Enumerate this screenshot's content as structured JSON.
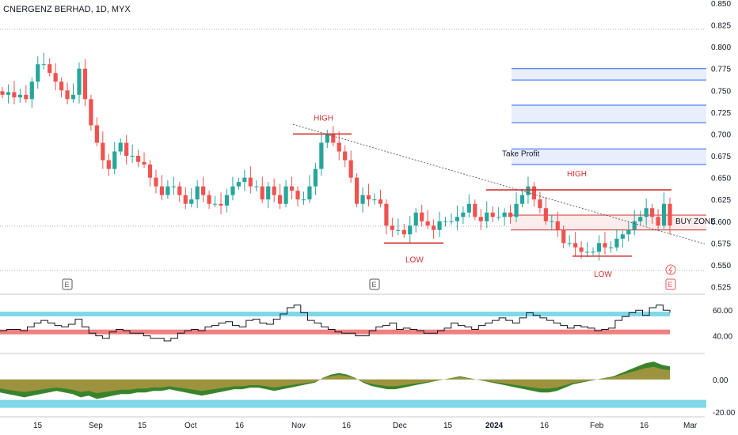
{
  "header": {
    "symbol_title": "CNERGENZ BERHAD, 1D, MYX"
  },
  "colors": {
    "up": "#26a69a",
    "down": "#ef5350",
    "level_line": "#d32f2f",
    "tp_band": "#2962ff",
    "rsi_top": "#7fd8e8",
    "rsi_bottom": "#f08080",
    "osc_pos": "#2e7d1f",
    "osc_neg_fill": "#f0a050",
    "osc_band": "#7fd8e8"
  },
  "annotations": {
    "high_1": "HIGH",
    "low_1": "LOW",
    "high_2": "HIGH",
    "low_2": "LOW",
    "take_profit": "Take Profit",
    "buy_zone": "BUY ZONE",
    "earnings_marker": "E"
  },
  "chart_data": [
    {
      "type": "candlestick",
      "title": "CNERGENZ BERHAD, 1D, MYX",
      "x_ticks": [
        "15",
        "Sep",
        "15",
        "Oct",
        "16",
        "Nov",
        "16",
        "Dec",
        "15",
        "2024",
        "16",
        "Feb",
        "16",
        "Mar"
      ],
      "y_ticks": [
        "0.850",
        "0.825",
        "0.800",
        "0.775",
        "0.750",
        "0.725",
        "0.700",
        "0.675",
        "0.650",
        "0.625",
        "0.600",
        "0.575",
        "0.550",
        "0.525"
      ],
      "ylim": [
        0.52,
        0.85
      ],
      "high_level_1": 0.7,
      "low_level_1": 0.575,
      "high_level_2": 0.636,
      "low_level_2": 0.56,
      "buy_zone": [
        0.59,
        0.607
      ],
      "take_profit_zones": [
        [
          0.665,
          0.683
        ],
        [
          0.713,
          0.733
        ],
        [
          0.762,
          0.775
        ]
      ],
      "close_trace": [
        0.745,
        0.748,
        0.742,
        0.745,
        0.74,
        0.76,
        0.78,
        0.78,
        0.77,
        0.76,
        0.75,
        0.74,
        0.745,
        0.775,
        0.74,
        0.71,
        0.69,
        0.67,
        0.66,
        0.68,
        0.69,
        0.675,
        0.675,
        0.668,
        0.665,
        0.65,
        0.64,
        0.63,
        0.64,
        0.64,
        0.63,
        0.62,
        0.625,
        0.64,
        0.63,
        0.62,
        0.62,
        0.618,
        0.63,
        0.64,
        0.645,
        0.65,
        0.64,
        0.64,
        0.625,
        0.64,
        0.63,
        0.62,
        0.64,
        0.635,
        0.625,
        0.625,
        0.64,
        0.66,
        0.69,
        0.7,
        0.69,
        0.68,
        0.67,
        0.65,
        0.62,
        0.63,
        0.625,
        0.625,
        0.62,
        0.595,
        0.59,
        0.59,
        0.585,
        0.595,
        0.61,
        0.6,
        0.595,
        0.59,
        0.6,
        0.6,
        0.6,
        0.605,
        0.61,
        0.62,
        0.605,
        0.6,
        0.61,
        0.605,
        0.605,
        0.61,
        0.605,
        0.62,
        0.63,
        0.64,
        0.625,
        0.615,
        0.6,
        0.6,
        0.59,
        0.575,
        0.575,
        0.57,
        0.565,
        0.565,
        0.565,
        0.575,
        0.57,
        0.57,
        0.58,
        0.585,
        0.59,
        0.6,
        0.605,
        0.615,
        0.605,
        0.595,
        0.62,
        0.595
      ],
      "annotations": [
        "HIGH",
        "LOW",
        "HIGH",
        "LOW",
        "Take Profit",
        "BUY ZONE"
      ]
    },
    {
      "type": "line",
      "name": "oscillator_1",
      "y_ticks": [
        "60.00",
        "40.00"
      ],
      "band_upper": 57,
      "band_lower": 43,
      "values": [
        44,
        45,
        45,
        44,
        47,
        50,
        52,
        50,
        48,
        47,
        49,
        53,
        47,
        42,
        40,
        38,
        43,
        45,
        44,
        42,
        42,
        40,
        38,
        38,
        36,
        38,
        42,
        44,
        45,
        44,
        47,
        48,
        50,
        51,
        48,
        47,
        52,
        53,
        50,
        49,
        53,
        57,
        62,
        64,
        58,
        52,
        50,
        47,
        45,
        43,
        42,
        42,
        40,
        40,
        44,
        47,
        48,
        50,
        45,
        46,
        45,
        44,
        42,
        42,
        44,
        46,
        50,
        48,
        47,
        45,
        48,
        50,
        52,
        54,
        52,
        50,
        54,
        58,
        56,
        54,
        52,
        50,
        48,
        46,
        48,
        47,
        46,
        44,
        45,
        46,
        52,
        55,
        58,
        60,
        56,
        62,
        64,
        60,
        58
      ]
    },
    {
      "type": "area",
      "name": "oscillator_2",
      "y_ticks": [
        "0.00",
        "-20.00"
      ],
      "band": -15,
      "values": [
        -8,
        -9,
        -10,
        -11,
        -10,
        -9,
        -8,
        -7,
        -8,
        -9,
        -11,
        -10,
        -12,
        -11,
        -10,
        -9,
        -9,
        -8,
        -8,
        -7,
        -7,
        -6,
        -7,
        -8,
        -9,
        -10,
        -9,
        -8,
        -7,
        -6,
        -6,
        -5,
        -5,
        -6,
        -7,
        -6,
        -5,
        -4,
        -3,
        -2,
        1,
        3,
        4,
        3,
        1,
        -2,
        -4,
        -5,
        -6,
        -6,
        -5,
        -4,
        -3,
        -2,
        -1,
        0,
        1,
        2,
        1,
        0,
        -1,
        -2,
        -3,
        -4,
        -5,
        -6,
        -7,
        -8,
        -8,
        -7,
        -5,
        -3,
        -2,
        -1,
        0,
        1,
        2,
        4,
        6,
        8,
        10,
        11,
        9,
        8
      ]
    }
  ]
}
